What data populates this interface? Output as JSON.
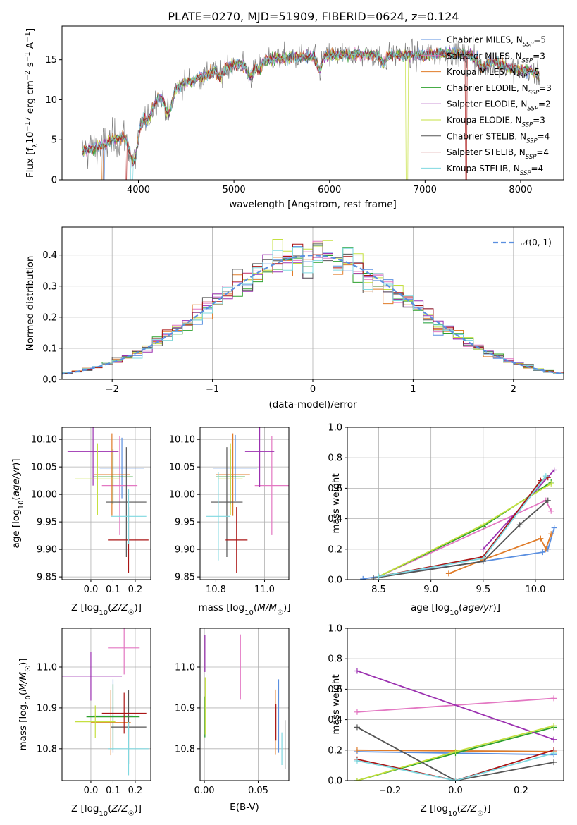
{
  "figure_title": "PLATE=0270, MJD=51909, FIBERID=0624, z=0.124",
  "colors": {
    "Chabrier MILES": "#5a8fe0",
    "Salpeter MILES": "#e377c2",
    "Kroupa MILES": "#e07b28",
    "Chabrier ELODIE": "#2ca02c",
    "Salpeter ELODIE": "#9b30b0",
    "Kroupa ELODIE": "#c5e040",
    "Chabrier STELIB": "#555555",
    "Salpeter STELIB": "#aa1515",
    "Kroupa STELIB": "#7fd8e0",
    "data": "#7f7f7f",
    "normal": "#5a8fe0"
  },
  "chart_data": [
    {
      "id": "spectrum",
      "type": "line",
      "title": "PLATE=0270, MJD=51909, FIBERID=0624, z=0.124",
      "xlabel": "wavelength [Angstrom, rest frame]",
      "ylabel": "Flux [f_λ 10^-17 erg cm^-2 s^-1 A^-1]",
      "xlim": [
        3200,
        8450
      ],
      "ylim": [
        0,
        19.2
      ],
      "xticks": [
        4000,
        5000,
        6000,
        7000,
        8000
      ],
      "yticks": [
        0,
        5,
        10,
        15
      ],
      "legend_position": "upper right",
      "legend": [
        {
          "model": "Chabrier MILES",
          "label": "Chabrier MILES, N_SSP=5"
        },
        {
          "model": "Salpeter MILES",
          "label": "Salpeter MILES, N_SSP=3"
        },
        {
          "model": "Kroupa MILES",
          "label": "Kroupa MILES, N_SSP=5"
        },
        {
          "model": "Chabrier ELODIE",
          "label": "Chabrier ELODIE, N_SSP=3"
        },
        {
          "model": "Salpeter ELODIE",
          "label": "Salpeter ELODIE, N_SSP=2"
        },
        {
          "model": "Kroupa ELODIE",
          "label": "Kroupa ELODIE, N_SSP=3"
        },
        {
          "model": "Chabrier STELIB",
          "label": "Chabrier STELIB, N_SSP=4"
        },
        {
          "model": "Salpeter STELIB",
          "label": "Salpeter STELIB, N_SSP=4"
        },
        {
          "model": "Kroupa STELIB",
          "label": "Kroupa STELIB, N_SSP=4"
        }
      ],
      "continuum": {
        "x": [
          3400,
          3600,
          3800,
          3950,
          4100,
          4300,
          4500,
          4700,
          4900,
          5100,
          5300,
          5500,
          5700,
          5900,
          6100,
          6300,
          6500,
          6700,
          6900,
          7100,
          7300,
          7500,
          7700,
          7900,
          8100,
          8200
        ],
        "y": [
          3.5,
          4.2,
          5.3,
          6.0,
          9.0,
          11.0,
          12.2,
          13.0,
          14.2,
          14.6,
          15.0,
          15.2,
          15.4,
          15.5,
          15.6,
          15.7,
          15.6,
          15.6,
          15.5,
          15.7,
          15.8,
          15.6,
          14.8,
          13.9,
          13.6,
          13.0
        ]
      }
    },
    {
      "id": "residuals",
      "type": "histogram",
      "xlabel": "(data-model)/error",
      "ylabel": "Normed distribution",
      "xlim": [
        -2.5,
        2.5
      ],
      "ylim": [
        0,
        0.49
      ],
      "xticks": [
        -2,
        -1,
        0,
        1,
        2
      ],
      "yticks": [
        0.0,
        0.1,
        0.2,
        0.3,
        0.4
      ],
      "bin_width": 0.1,
      "reference_curve": {
        "label": "𝒩(0, 1)",
        "mean": 0,
        "sigma": 1,
        "style": "dashed"
      }
    },
    {
      "id": "age_vs_Z",
      "type": "errorbar",
      "xlabel": "Z [log10(Z/Z☉)]",
      "ylabel": "age [log10(age/yr)]",
      "xlim": [
        -0.13,
        0.27
      ],
      "ylim": [
        9.845,
        10.122
      ],
      "xticks": [
        0.0,
        0.1,
        0.2
      ],
      "yticks": [
        9.85,
        9.9,
        9.95,
        10.0,
        10.05,
        10.1
      ],
      "points": [
        {
          "model": "Chabrier MILES",
          "x": 0.14,
          "xerr": 0.1,
          "y": 10.048,
          "yerr": 0.055
        },
        {
          "model": "Salpeter MILES",
          "x": 0.13,
          "xerr": 0.08,
          "y": 10.016,
          "yerr": 0.09
        },
        {
          "model": "Kroupa MILES",
          "x": 0.095,
          "xerr": 0.08,
          "y": 10.036,
          "yerr": 0.075
        },
        {
          "model": "Chabrier ELODIE",
          "x": 0.1,
          "xerr": 0.09,
          "y": 10.032,
          "yerr": 0.05
        },
        {
          "model": "Salpeter ELODIE",
          "x": 0.01,
          "xerr": 0.115,
          "y": 10.078,
          "yerr": 0.062
        },
        {
          "model": "Kroupa ELODIE",
          "x": 0.03,
          "xerr": 0.1,
          "y": 10.028,
          "yerr": 0.065
        },
        {
          "model": "Chabrier STELIB",
          "x": 0.16,
          "xerr": 0.09,
          "y": 9.986,
          "yerr": 0.1
        },
        {
          "model": "Salpeter STELIB",
          "x": 0.17,
          "xerr": 0.09,
          "y": 9.917,
          "yerr": 0.06
        },
        {
          "model": "Kroupa STELIB",
          "x": 0.17,
          "xerr": 0.08,
          "y": 9.96,
          "yerr": 0.05
        }
      ]
    },
    {
      "id": "age_vs_mass",
      "type": "errorbar",
      "xlabel": "mass [log10(M/M☉)]",
      "ylabel": "",
      "xlim": [
        10.735,
        11.1
      ],
      "ylim": [
        9.845,
        10.122
      ],
      "xticks": [
        10.8,
        11.0
      ],
      "yticks": [
        9.85,
        9.9,
        9.95,
        10.0,
        10.05,
        10.1
      ],
      "points": [
        {
          "model": "Chabrier MILES",
          "x": 10.88,
          "xerr": 0.09,
          "y": 10.048,
          "yerr": 0.06
        },
        {
          "model": "Salpeter MILES",
          "x": 11.03,
          "xerr": 0.07,
          "y": 10.016,
          "yerr": 0.09
        },
        {
          "model": "Kroupa MILES",
          "x": 10.87,
          "xerr": 0.07,
          "y": 10.036,
          "yerr": 0.075
        },
        {
          "model": "Chabrier ELODIE",
          "x": 10.86,
          "xerr": 0.06,
          "y": 10.032,
          "yerr": 0.05
        },
        {
          "model": "Salpeter ELODIE",
          "x": 10.98,
          "xerr": 0.06,
          "y": 10.078,
          "yerr": 0.065
        },
        {
          "model": "Kroupa ELODIE",
          "x": 10.86,
          "xerr": 0.05,
          "y": 10.028,
          "yerr": 0.065
        },
        {
          "model": "Chabrier STELIB",
          "x": 10.845,
          "xerr": 0.065,
          "y": 9.986,
          "yerr": 0.1
        },
        {
          "model": "Salpeter STELIB",
          "x": 10.885,
          "xerr": 0.045,
          "y": 9.917,
          "yerr": 0.06
        },
        {
          "model": "Kroupa STELIB",
          "x": 10.81,
          "xerr": 0.05,
          "y": 9.96,
          "yerr": 0.08
        }
      ]
    },
    {
      "id": "weight_vs_age",
      "type": "line",
      "xlabel": "age [log10(age/yr)]",
      "ylabel": "mass weight",
      "xlim": [
        8.2,
        10.27
      ],
      "ylim": [
        0,
        1.0
      ],
      "xticks": [
        8.5,
        9.0,
        9.5,
        10.0
      ],
      "yticks": [
        0.0,
        0.2,
        0.4,
        0.6,
        0.8,
        1.0
      ],
      "series": [
        {
          "model": "Chabrier MILES",
          "x": [
            8.35,
            9.5,
            10.07,
            10.12,
            10.18
          ],
          "y": [
            0.005,
            0.12,
            0.18,
            0.2,
            0.34
          ]
        },
        {
          "model": "Salpeter MILES",
          "x": [
            8.5,
            10.1,
            10.15
          ],
          "y": [
            0.02,
            0.52,
            0.45
          ]
        },
        {
          "model": "Kroupa MILES",
          "x": [
            9.17,
            9.5,
            10.05,
            10.1,
            10.15
          ],
          "y": [
            0.04,
            0.13,
            0.27,
            0.2,
            0.3
          ]
        },
        {
          "model": "Chabrier ELODIE",
          "x": [
            8.5,
            9.5,
            10.15
          ],
          "y": [
            0.02,
            0.35,
            0.64
          ]
        },
        {
          "model": "Salpeter ELODIE",
          "x": [
            9.5,
            10.18
          ],
          "y": [
            0.2,
            0.72
          ]
        },
        {
          "model": "Kroupa ELODIE",
          "x": [
            8.5,
            9.5,
            10.15
          ],
          "y": [
            0.02,
            0.36,
            0.63
          ]
        },
        {
          "model": "Chabrier STELIB",
          "x": [
            8.45,
            9.5,
            9.85,
            10.12
          ],
          "y": [
            0.01,
            0.12,
            0.36,
            0.52
          ]
        },
        {
          "model": "Salpeter STELIB",
          "x": [
            8.5,
            9.5,
            10.05,
            10.12
          ],
          "y": [
            0.02,
            0.15,
            0.65,
            0.67
          ]
        },
        {
          "model": "Kroupa STELIB",
          "x": [
            8.5,
            9.5,
            10.1
          ],
          "y": [
            0.02,
            0.14,
            0.68
          ]
        }
      ]
    },
    {
      "id": "mass_vs_Z",
      "type": "errorbar",
      "xlabel": "Z [log10(Z/Z☉)]",
      "ylabel": "mass [log10(M/M☉)]",
      "xlim": [
        -0.13,
        0.27
      ],
      "ylim": [
        10.722,
        11.095
      ],
      "xticks": [
        0.0,
        0.1,
        0.2
      ],
      "yticks": [
        10.8,
        10.9,
        11.0
      ],
      "points": [
        {
          "model": "Chabrier MILES",
          "x": 0.1,
          "xerr": 0.09,
          "y": 10.88,
          "yerr": 0.09
        },
        {
          "model": "Salpeter MILES",
          "x": 0.15,
          "xerr": 0.07,
          "y": 11.047,
          "yerr": 0.065
        },
        {
          "model": "Kroupa MILES",
          "x": 0.09,
          "xerr": 0.09,
          "y": 10.864,
          "yerr": 0.08
        },
        {
          "model": "Chabrier ELODIE",
          "x": 0.1,
          "xerr": 0.12,
          "y": 10.878,
          "yerr": 0.08
        },
        {
          "model": "Salpeter ELODIE",
          "x": 0.0,
          "xerr": 0.14,
          "y": 10.978,
          "yerr": 0.06
        },
        {
          "model": "Kroupa ELODIE",
          "x": 0.02,
          "xerr": 0.09,
          "y": 10.866,
          "yerr": 0.04
        },
        {
          "model": "Chabrier STELIB",
          "x": 0.17,
          "xerr": 0.08,
          "y": 10.853,
          "yerr": 0.09
        },
        {
          "model": "Salpeter STELIB",
          "x": 0.15,
          "xerr": 0.1,
          "y": 10.887,
          "yerr": 0.05
        },
        {
          "model": "Kroupa STELIB",
          "x": 0.17,
          "xerr": 0.09,
          "y": 10.8,
          "yerr": 0.065
        }
      ]
    },
    {
      "id": "mass_vs_EBV",
      "type": "errorbar",
      "xlabel": "E(B-V)",
      "ylabel": "",
      "xlim": [
        -0.004,
        0.0785
      ],
      "ylim": [
        10.722,
        11.095
      ],
      "xticks": [
        0.0,
        0.05
      ],
      "yticks": [
        10.8,
        10.9,
        11.0
      ],
      "points": [
        {
          "model": "Chabrier MILES",
          "x": 0.069,
          "xerr": 0,
          "y": 10.88,
          "yerr": 0.09
        },
        {
          "model": "Salpeter MILES",
          "x": 0.0335,
          "xerr": 0,
          "y": 11.0,
          "yerr": 0.08
        },
        {
          "model": "Kroupa MILES",
          "x": 0.066,
          "xerr": 0,
          "y": 10.865,
          "yerr": 0.08
        },
        {
          "model": "Chabrier ELODIE",
          "x": 0.0005,
          "xerr": 0,
          "y": 10.878,
          "yerr": 0.05
        },
        {
          "model": "Salpeter ELODIE",
          "x": 0.0005,
          "xerr": 0,
          "y": 11.033,
          "yerr": 0.045
        },
        {
          "model": "Kroupa ELODIE",
          "x": 0.0008,
          "xerr": 0,
          "y": 10.905,
          "yerr": 0.07
        },
        {
          "model": "Chabrier STELIB",
          "x": 0.075,
          "xerr": 0,
          "y": 10.81,
          "yerr": 0.06
        },
        {
          "model": "Salpeter STELIB",
          "x": 0.0665,
          "xerr": 0,
          "y": 10.865,
          "yerr": 0.045
        },
        {
          "model": "Kroupa STELIB",
          "x": 0.072,
          "xerr": 0,
          "y": 10.8,
          "yerr": 0.04
        }
      ]
    },
    {
      "id": "weight_vs_Z",
      "type": "line",
      "xlabel": "Z [log10(Z/Z☉)]",
      "ylabel": "mass weight",
      "xlim": [
        -0.33,
        0.33
      ],
      "ylim": [
        0,
        1.0
      ],
      "xticks": [
        -0.2,
        0.0,
        0.2
      ],
      "yticks": [
        0.0,
        0.2,
        0.4,
        0.6,
        0.8,
        1.0
      ],
      "series": [
        {
          "model": "Chabrier MILES",
          "x": [
            -0.3,
            0.3
          ],
          "y": [
            0.19,
            0.17
          ]
        },
        {
          "model": "Salpeter MILES",
          "x": [
            -0.3,
            0.3
          ],
          "y": [
            0.45,
            0.54
          ]
        },
        {
          "model": "Kroupa MILES",
          "x": [
            -0.3,
            0.3
          ],
          "y": [
            0.2,
            0.19
          ]
        },
        {
          "model": "Chabrier ELODIE",
          "x": [
            -0.3,
            0.0,
            0.3
          ],
          "y": [
            0.0,
            0.18,
            0.35
          ]
        },
        {
          "model": "Salpeter ELODIE",
          "x": [
            -0.3,
            0.3
          ],
          "y": [
            0.72,
            0.27
          ]
        },
        {
          "model": "Kroupa ELODIE",
          "x": [
            -0.3,
            0.0,
            0.3
          ],
          "y": [
            0.0,
            0.19,
            0.36
          ]
        },
        {
          "model": "Chabrier STELIB",
          "x": [
            -0.3,
            0.0,
            0.3
          ],
          "y": [
            0.35,
            0.0,
            0.12
          ]
        },
        {
          "model": "Salpeter STELIB",
          "x": [
            -0.3,
            0.0,
            0.3
          ],
          "y": [
            0.14,
            0.0,
            0.2
          ]
        },
        {
          "model": "Kroupa STELIB",
          "x": [
            -0.3,
            0.0,
            0.3
          ],
          "y": [
            0.13,
            0.0,
            0.18
          ]
        }
      ]
    }
  ]
}
